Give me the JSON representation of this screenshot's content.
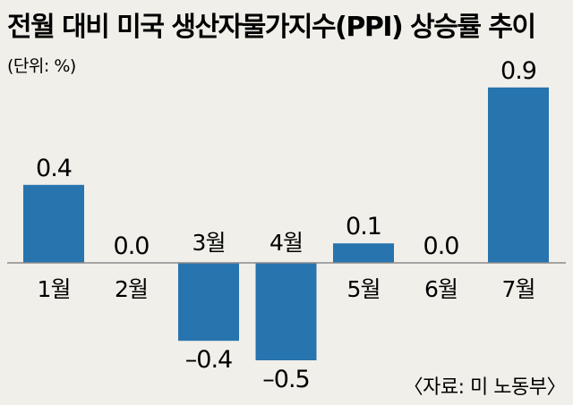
{
  "chart_data": {
    "type": "bar",
    "title": "전월 대비 미국 생산자물가지수(PPI) 상승률 추이",
    "unit_label": "(단위: %)",
    "categories": [
      "1월",
      "2월",
      "3월",
      "4월",
      "5월",
      "6월",
      "7월"
    ],
    "values": [
      0.4,
      0.0,
      -0.4,
      -0.5,
      0.1,
      0.0,
      0.9
    ],
    "value_labels": [
      "0.4",
      "0.0",
      "–0.4",
      "–0.5",
      "0.1",
      "0.0",
      "0.9"
    ],
    "source": "〈자료: 미 노동부〉",
    "bar_color": "#2774ae",
    "axis_color": "#8a8a8a",
    "grid": false,
    "legend": "none"
  }
}
